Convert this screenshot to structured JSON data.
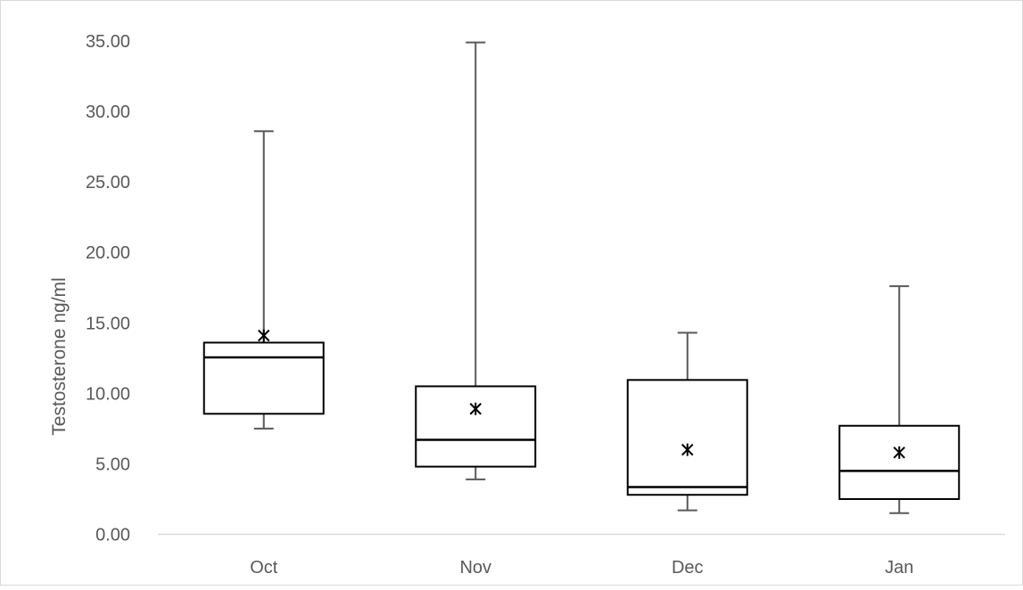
{
  "chart_data": {
    "type": "box",
    "title": "",
    "xlabel": "",
    "ylabel": "Testosterone ng/ml",
    "ylim": [
      0,
      35
    ],
    "yticks": [
      "0.00",
      "5.00",
      "10.00",
      "15.00",
      "20.00",
      "25.00",
      "30.00",
      "35.00"
    ],
    "ytick_values": [
      0,
      5,
      10,
      15,
      20,
      25,
      30,
      35
    ],
    "categories": [
      "Oct",
      "Nov",
      "Dec",
      "Jan"
    ],
    "boxes": [
      {
        "category": "Oct",
        "min": 7.5,
        "q1": 8.55,
        "median": 12.55,
        "q3": 13.6,
        "max": 28.6,
        "mean": 14.1
      },
      {
        "category": "Nov",
        "min": 3.9,
        "q1": 4.8,
        "median": 6.7,
        "q3": 10.5,
        "max": 34.9,
        "mean": 8.9
      },
      {
        "category": "Dec",
        "min": 1.7,
        "q1": 2.8,
        "median": 3.35,
        "q3": 10.95,
        "max": 14.3,
        "mean": 6.0
      },
      {
        "category": "Jan",
        "min": 1.5,
        "q1": 2.5,
        "median": 4.5,
        "q3": 7.7,
        "max": 17.6,
        "mean": 5.8
      }
    ],
    "grid": false,
    "legend": "none",
    "colors": {
      "box": "#000000",
      "whisker": "#595959",
      "axis": "#d9d9d9",
      "text": "#595959",
      "border": "#d9d9d9"
    }
  }
}
